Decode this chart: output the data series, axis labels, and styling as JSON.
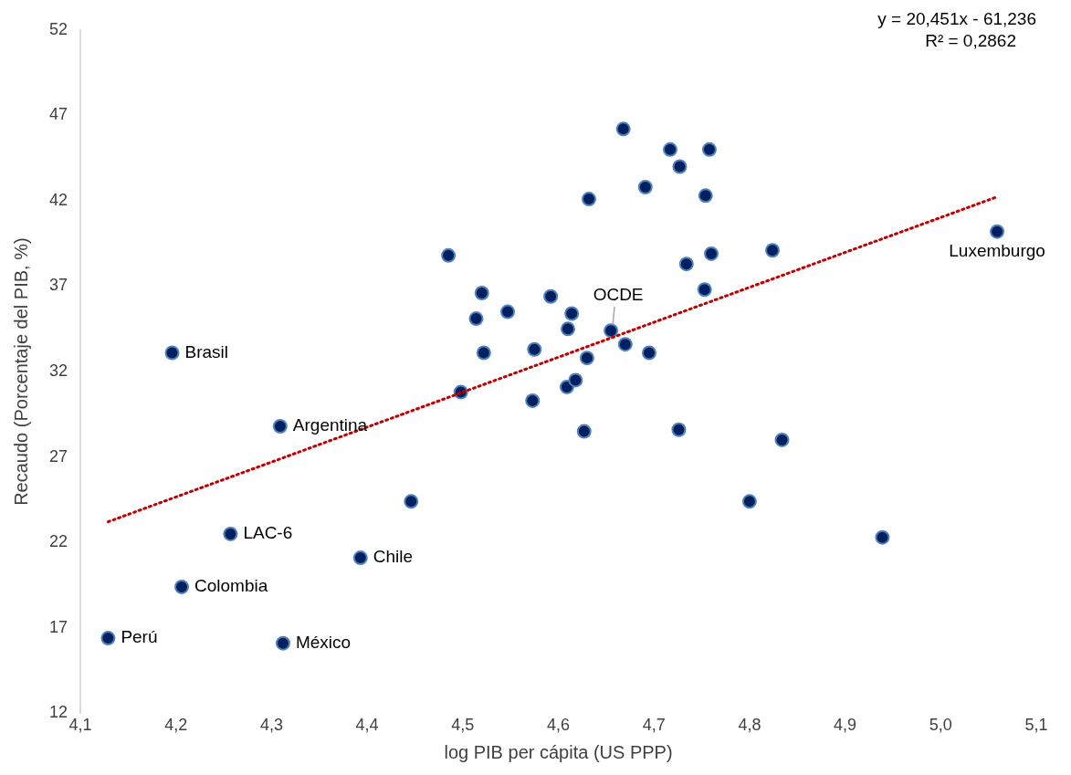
{
  "chart_data": {
    "type": "scatter",
    "xlabel": "log PIB per cápita (US PPP)",
    "ylabel": "Recaudo (Porcentaje del PIB, %)",
    "xlim": [
      4.1,
      5.1
    ],
    "xticks": [
      {
        "value": 4.1,
        "label": "4,1"
      },
      {
        "value": 4.2,
        "label": "4,2"
      },
      {
        "value": 4.3,
        "label": "4,3"
      },
      {
        "value": 4.4,
        "label": "4,4"
      },
      {
        "value": 4.5,
        "label": "4,5"
      },
      {
        "value": 4.6,
        "label": "4,6"
      },
      {
        "value": 4.7,
        "label": "4,7"
      },
      {
        "value": 4.8,
        "label": "4,8"
      },
      {
        "value": 4.9,
        "label": "4,9"
      },
      {
        "value": 5.0,
        "label": "5,0"
      },
      {
        "value": 5.1,
        "label": "5,1"
      }
    ],
    "ylim": [
      12,
      52
    ],
    "yticks": [
      12,
      17,
      22,
      27,
      32,
      37,
      42,
      47,
      52
    ],
    "grid": false,
    "legend": false,
    "marker": "circle",
    "series": [
      {
        "type": "scatter",
        "color": "#002060",
        "x": [
          4.129,
          4.312,
          4.206,
          4.393,
          4.257,
          4.309,
          4.196,
          4.446,
          4.485,
          4.498,
          4.514,
          4.52,
          4.522,
          4.547,
          4.573,
          4.575,
          4.592,
          4.61,
          4.609,
          4.618,
          4.614,
          4.627,
          4.63,
          4.632,
          4.655,
          4.668,
          4.67,
          4.691,
          4.695,
          4.717,
          4.758,
          4.727,
          4.754,
          4.76,
          4.734,
          4.753,
          4.824,
          4.726,
          4.834,
          4.8,
          4.939,
          5.059
        ],
        "values": [
          16.4,
          16.1,
          19.4,
          21.1,
          22.5,
          28.8,
          33.1,
          24.4,
          38.8,
          30.8,
          35.1,
          36.6,
          33.1,
          35.5,
          30.3,
          33.3,
          36.4,
          34.5,
          31.1,
          31.5,
          35.4,
          28.5,
          32.8,
          42.1,
          34.4,
          46.2,
          33.6,
          42.8,
          33.1,
          45.0,
          45.0,
          44.0,
          42.3,
          38.9,
          38.3,
          36.8,
          39.1,
          28.6,
          28.0,
          24.4,
          22.3,
          40.2
        ]
      },
      {
        "type": "line",
        "color": "#c00000",
        "line_style": "dotted",
        "marker": "none",
        "x": [
          4.129,
          5.059
        ],
        "values": [
          23.21,
          42.23
        ]
      }
    ],
    "annotations": [
      "y = 20,451x - 61,236",
      "R² = 0,2862",
      {
        "text": "Perú",
        "x": 4.129,
        "y": 16.4
      },
      {
        "text": "México",
        "x": 4.312,
        "y": 16.1
      },
      {
        "text": "Colombia",
        "x": 4.206,
        "y": 19.4
      },
      {
        "text": "Chile",
        "x": 4.393,
        "y": 21.1
      },
      {
        "text": "LAC-6",
        "x": 4.257,
        "y": 22.5
      },
      {
        "text": "Argentina",
        "x": 4.309,
        "y": 28.8
      },
      {
        "text": "Brasil",
        "x": 4.196,
        "y": 33.1
      },
      {
        "text": "OCDE",
        "x": 4.655,
        "y": 34.4
      },
      {
        "text": "Luxemburgo",
        "x": 5.059,
        "y": 40.2
      }
    ]
  }
}
